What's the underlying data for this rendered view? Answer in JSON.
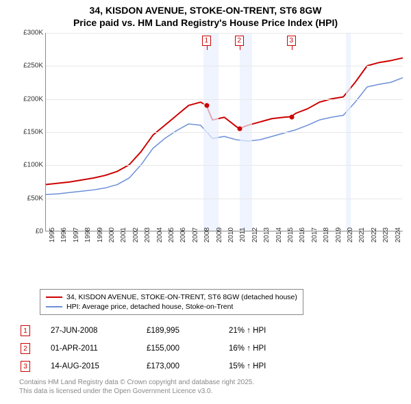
{
  "title": {
    "line1": "34, KISDON AVENUE, STOKE-ON-TRENT, ST6 8GW",
    "line2": "Price paid vs. HM Land Registry's House Price Index (HPI)"
  },
  "chart": {
    "type": "line",
    "xlim": [
      1995,
      2025
    ],
    "ylim": [
      0,
      300000
    ],
    "ytick_step": 50000,
    "yticks": [
      "£0",
      "£50K",
      "£100K",
      "£150K",
      "£200K",
      "£250K",
      "£300K"
    ],
    "xticks": [
      1995,
      1996,
      1997,
      1998,
      1999,
      2000,
      2001,
      2002,
      2003,
      2004,
      2005,
      2006,
      2007,
      2008,
      2009,
      2010,
      2011,
      2012,
      2013,
      2014,
      2015,
      2016,
      2017,
      2018,
      2019,
      2020,
      2021,
      2022,
      2023,
      2024
    ],
    "background_color": "#ffffff",
    "grid_color": "#e8e8e8",
    "shade_color": "#e8efff",
    "shaded_ranges": [
      {
        "x0": 2008.2,
        "x1": 2009.5
      },
      {
        "x0": 2011.25,
        "x1": 2012.3
      },
      {
        "x0": 2020.15,
        "x1": 2020.55
      }
    ],
    "series": [
      {
        "name": "price_paid",
        "label": "34, KISDON AVENUE, STOKE-ON-TRENT, ST6 8GW (detached house)",
        "color": "#cc0000",
        "line_width": 2,
        "points": [
          [
            1995,
            70000
          ],
          [
            1996,
            72000
          ],
          [
            1997,
            74000
          ],
          [
            1998,
            77000
          ],
          [
            1999,
            80000
          ],
          [
            2000,
            84000
          ],
          [
            2001,
            90000
          ],
          [
            2002,
            100000
          ],
          [
            2003,
            120000
          ],
          [
            2004,
            145000
          ],
          [
            2005,
            160000
          ],
          [
            2006,
            175000
          ],
          [
            2007,
            190000
          ],
          [
            2008,
            195000
          ],
          [
            2008.49,
            189995
          ],
          [
            2009,
            168000
          ],
          [
            2010,
            172000
          ],
          [
            2011,
            158000
          ],
          [
            2011.25,
            155000
          ],
          [
            2012,
            160000
          ],
          [
            2013,
            165000
          ],
          [
            2014,
            170000
          ],
          [
            2015,
            172000
          ],
          [
            2015.62,
            173000
          ],
          [
            2016,
            178000
          ],
          [
            2017,
            185000
          ],
          [
            2018,
            195000
          ],
          [
            2019,
            200000
          ],
          [
            2020,
            203000
          ],
          [
            2021,
            225000
          ],
          [
            2022,
            250000
          ],
          [
            2023,
            255000
          ],
          [
            2024,
            258000
          ],
          [
            2025,
            262000
          ]
        ]
      },
      {
        "name": "hpi",
        "label": "HPI: Average price, detached house, Stoke-on-Trent",
        "color": "#6a8fd8",
        "line_width": 1.5,
        "points": [
          [
            1995,
            55000
          ],
          [
            1996,
            56000
          ],
          [
            1997,
            58000
          ],
          [
            1998,
            60000
          ],
          [
            1999,
            62000
          ],
          [
            2000,
            65000
          ],
          [
            2001,
            70000
          ],
          [
            2002,
            80000
          ],
          [
            2003,
            100000
          ],
          [
            2004,
            125000
          ],
          [
            2005,
            140000
          ],
          [
            2006,
            152000
          ],
          [
            2007,
            162000
          ],
          [
            2008,
            160000
          ],
          [
            2009,
            140000
          ],
          [
            2010,
            143000
          ],
          [
            2011,
            138000
          ],
          [
            2012,
            136000
          ],
          [
            2013,
            138000
          ],
          [
            2014,
            143000
          ],
          [
            2015,
            148000
          ],
          [
            2016,
            153000
          ],
          [
            2017,
            160000
          ],
          [
            2018,
            168000
          ],
          [
            2019,
            172000
          ],
          [
            2020,
            175000
          ],
          [
            2021,
            195000
          ],
          [
            2022,
            218000
          ],
          [
            2023,
            222000
          ],
          [
            2024,
            225000
          ],
          [
            2025,
            232000
          ]
        ]
      }
    ],
    "markers": [
      {
        "n": "1",
        "x": 2008.49,
        "y": 189995
      },
      {
        "n": "2",
        "x": 2011.25,
        "y": 155000
      },
      {
        "n": "3",
        "x": 2015.62,
        "y": 173000
      }
    ]
  },
  "legend": {
    "items": [
      {
        "color": "#cc0000",
        "label": "34, KISDON AVENUE, STOKE-ON-TRENT, ST6 8GW (detached house)"
      },
      {
        "color": "#6a8fd8",
        "label": "HPI: Average price, detached house, Stoke-on-Trent"
      }
    ]
  },
  "sales": [
    {
      "n": "1",
      "date": "27-JUN-2008",
      "price": "£189,995",
      "diff": "21% ↑ HPI"
    },
    {
      "n": "2",
      "date": "01-APR-2011",
      "price": "£155,000",
      "diff": "16% ↑ HPI"
    },
    {
      "n": "3",
      "date": "14-AUG-2015",
      "price": "£173,000",
      "diff": "15% ↑ HPI"
    }
  ],
  "footer": {
    "line1": "Contains HM Land Registry data © Crown copyright and database right 2025.",
    "line2": "This data is licensed under the Open Government Licence v3.0."
  }
}
